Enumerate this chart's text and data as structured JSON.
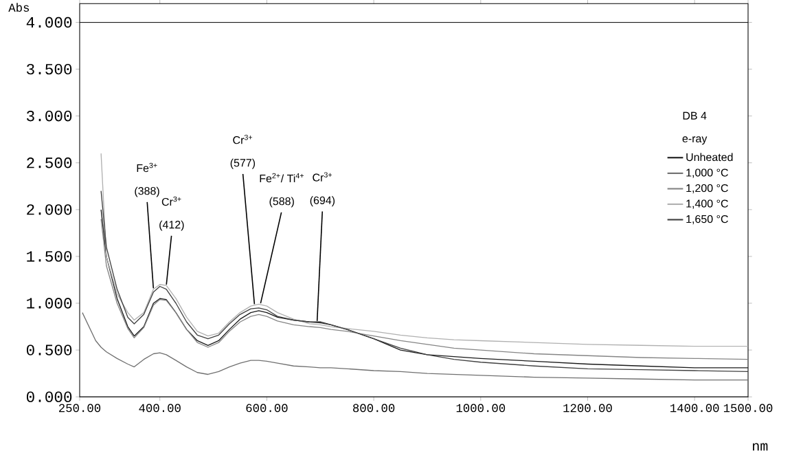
{
  "chart_data": {
    "type": "line",
    "title": "DB 4",
    "subtitle": "e-ray",
    "xlabel": "nm",
    "ylabel": "Abs",
    "x": [
      255,
      280,
      290,
      300,
      320,
      340,
      352,
      370,
      388,
      400,
      412,
      430,
      450,
      470,
      490,
      510,
      530,
      550,
      570,
      585,
      600,
      620,
      650,
      680,
      700,
      720,
      750,
      800,
      850,
      900,
      950,
      1000,
      1100,
      1200,
      1300,
      1400,
      1500
    ],
    "series": [
      {
        "name": "Unheated",
        "color": "#1a1a1a",
        "values": [
          null,
          null,
          2.0,
          1.5,
          1.05,
          0.75,
          0.65,
          0.75,
          1.0,
          1.05,
          1.04,
          0.9,
          0.72,
          0.6,
          0.55,
          0.6,
          0.72,
          0.83,
          0.9,
          0.92,
          0.9,
          0.85,
          0.82,
          0.8,
          0.8,
          0.77,
          0.72,
          0.62,
          0.5,
          0.45,
          0.43,
          0.41,
          0.38,
          0.35,
          0.33,
          0.31,
          0.31
        ]
      },
      {
        "name": "1,000 °C",
        "color": "#707070",
        "values": [
          0.9,
          0.6,
          0.53,
          0.48,
          0.41,
          0.35,
          0.32,
          0.4,
          0.46,
          0.47,
          0.45,
          0.39,
          0.32,
          0.26,
          0.24,
          0.27,
          0.32,
          0.36,
          0.39,
          0.39,
          0.38,
          0.36,
          0.33,
          0.32,
          0.31,
          0.31,
          0.3,
          0.28,
          0.27,
          0.25,
          0.24,
          0.23,
          0.21,
          0.2,
          0.19,
          0.18,
          0.18
        ]
      },
      {
        "name": "1,200 °C",
        "color": "#858585",
        "values": [
          null,
          null,
          1.9,
          1.4,
          1.0,
          0.73,
          0.63,
          0.74,
          0.98,
          1.04,
          1.03,
          0.9,
          0.72,
          0.58,
          0.53,
          0.58,
          0.7,
          0.8,
          0.86,
          0.88,
          0.86,
          0.81,
          0.77,
          0.75,
          0.74,
          0.72,
          0.7,
          0.65,
          0.6,
          0.56,
          0.52,
          0.5,
          0.46,
          0.44,
          0.42,
          0.41,
          0.4
        ]
      },
      {
        "name": "1,400 °C",
        "color": "#b0b0b0",
        "values": [
          null,
          null,
          2.6,
          1.5,
          1.1,
          0.9,
          0.82,
          0.9,
          1.15,
          1.2,
          1.19,
          1.05,
          0.85,
          0.7,
          0.65,
          0.68,
          0.8,
          0.9,
          0.97,
          0.99,
          0.97,
          0.9,
          0.83,
          0.78,
          0.77,
          0.75,
          0.73,
          0.7,
          0.66,
          0.63,
          0.61,
          0.6,
          0.58,
          0.56,
          0.55,
          0.54,
          0.54
        ]
      },
      {
        "name": "1,650 °C",
        "color": "#404040",
        "values": [
          null,
          null,
          2.2,
          1.6,
          1.15,
          0.85,
          0.78,
          0.88,
          1.12,
          1.18,
          1.15,
          1.0,
          0.8,
          0.66,
          0.62,
          0.66,
          0.78,
          0.88,
          0.94,
          0.95,
          0.93,
          0.86,
          0.82,
          0.8,
          0.79,
          0.77,
          0.72,
          0.62,
          0.52,
          0.45,
          0.4,
          0.37,
          0.33,
          0.3,
          0.29,
          0.28,
          0.27
        ]
      }
    ],
    "xlim": [
      250,
      1500
    ],
    "ylim": [
      0,
      4.2
    ],
    "xticks": [
      {
        "value": 250,
        "label": "250.00"
      },
      {
        "value": 400,
        "label": "400.00"
      },
      {
        "value": 600,
        "label": "600.00"
      },
      {
        "value": 800,
        "label": "800.00"
      },
      {
        "value": 1000,
        "label": "1000.00"
      },
      {
        "value": 1200,
        "label": "1200.00"
      },
      {
        "value": 1400,
        "label": "1400.00"
      },
      {
        "value": 1500,
        "label": "1500.00"
      }
    ],
    "yticks": [
      {
        "value": 0,
        "label": "0.000"
      },
      {
        "value": 0.5,
        "label": "0.500"
      },
      {
        "value": 1,
        "label": "1.000"
      },
      {
        "value": 1.5,
        "label": "1.500"
      },
      {
        "value": 2,
        "label": "2.000"
      },
      {
        "value": 2.5,
        "label": "2.500"
      },
      {
        "value": 3,
        "label": "3.000"
      },
      {
        "value": 3.5,
        "label": "3.500"
      },
      {
        "value": 4,
        "label": "4.000"
      }
    ],
    "ref_lines": [
      {
        "axis": "y",
        "value": 4,
        "color": "#1a1a1a"
      }
    ],
    "annotations": [
      "Fe$^{3+}$",
      {
        "text": "(388)",
        "x": 388,
        "y": 1.15
      },
      "Cr$^{3+}$",
      {
        "text": "(412)",
        "x": 412,
        "y": 1.19
      },
      "Cr$^{3+}$",
      {
        "text": "(577)",
        "x": 577,
        "y": 0.98
      },
      "Fe$^{2+}$/ Ti$^{4+}$",
      {
        "text": "(588)",
        "x": 588,
        "y": 0.99
      },
      "Cr$^{3+}$",
      {
        "text": "(694)",
        "x": 694,
        "y": 0.8
      }
    ],
    "legend": "right",
    "grid": false,
    "marker": "none",
    "line_style": "solid"
  }
}
